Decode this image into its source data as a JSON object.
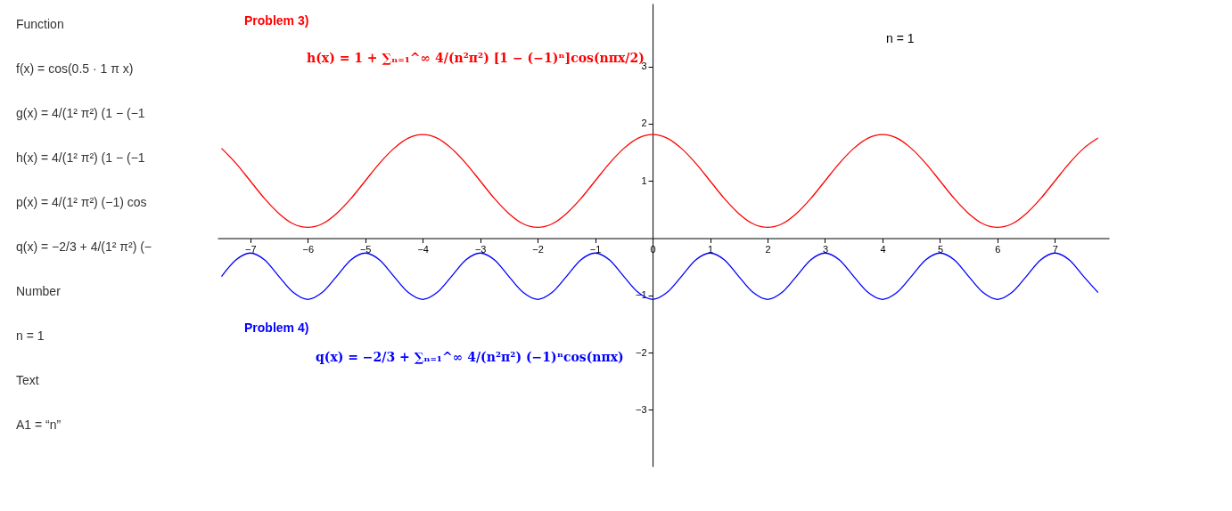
{
  "chart_data": [
    {
      "type": "other",
      "annotations": [
        "Function",
        "f(x) = cos(0.5 · 1 π x)",
        "g(x) = 4/(1² π²) (1 − (−1",
        "h(x) = 4/(1² π²) (1 − (−1",
        "p(x) = 4/(1² π²) (−1) cos",
        "q(x) = −2/3 + 4/(1² π²) (−",
        "Number",
        "n = 1",
        "Text",
        "A1 = “n”"
      ]
    },
    {
      "type": "line",
      "xlim": [
        -7.57,
        7.94
      ],
      "ylim": [
        -3.99,
        4.1
      ],
      "xticks": [
        -7,
        -6,
        -5,
        -4,
        -3,
        -2,
        -1,
        0,
        1,
        2,
        3,
        4,
        5,
        6,
        7
      ],
      "yticks": [
        -3,
        -2,
        -1,
        1,
        2,
        3
      ],
      "grid": false,
      "line_style": "solid",
      "annotations": [
        "Problem 3)",
        "h(x) = 1 + ∑ₙ₌₁^∞ 4/(n²π²) [1 − (−1)ⁿ]cos(nπx/2)",
        "Problem 4)",
        "q(x) = −2/3 + ∑ₙ₌₁^∞ 4/(n²π²) (−1)ⁿcos(nπx)",
        "n = 1"
      ],
      "series": [
        {
          "color": "#ff0000",
          "x": [
            -7.5,
            -7.25,
            -7.0,
            -6.75,
            -6.5,
            -6.25,
            -6.0,
            -5.75,
            -5.5,
            -5.25,
            -5.0,
            -4.75,
            -4.5,
            -4.25,
            -4.0,
            -3.75,
            -3.5,
            -3.25,
            -3.0,
            -2.75,
            -2.5,
            -2.25,
            -2.0,
            -1.75,
            -1.5,
            -1.25,
            -1.0,
            -0.75,
            -0.5,
            -0.25,
            0.0,
            0.25,
            0.5,
            0.75,
            1.0,
            1.25,
            1.5,
            1.75,
            2.0,
            2.25,
            2.5,
            2.75,
            3.0,
            3.25,
            3.5,
            3.75,
            4.0,
            4.25,
            4.5,
            4.75,
            5.0,
            5.25,
            5.5,
            5.75,
            6.0,
            6.25,
            6.5,
            6.75,
            7.0,
            7.25,
            7.5,
            7.75
          ],
          "values": [
            1.57,
            1.31,
            1.0,
            0.69,
            0.43,
            0.25,
            0.19,
            0.25,
            0.43,
            0.69,
            1.0,
            1.31,
            1.57,
            1.75,
            1.81,
            1.75,
            1.57,
            1.31,
            1.0,
            0.69,
            0.43,
            0.25,
            0.19,
            0.25,
            0.43,
            0.69,
            1.0,
            1.31,
            1.57,
            1.75,
            1.81,
            1.75,
            1.57,
            1.31,
            1.0,
            0.69,
            0.43,
            0.25,
            0.19,
            0.25,
            0.43,
            0.69,
            1.0,
            1.31,
            1.57,
            1.75,
            1.81,
            1.75,
            1.57,
            1.31,
            1.0,
            0.69,
            0.43,
            0.25,
            0.19,
            0.25,
            0.43,
            0.69,
            1.0,
            1.31,
            1.57,
            1.75
          ]
        },
        {
          "color": "#0000ff",
          "x": [
            -7.5,
            -7.25,
            -7.0,
            -6.75,
            -6.5,
            -6.25,
            -6.0,
            -5.75,
            -5.5,
            -5.25,
            -5.0,
            -4.75,
            -4.5,
            -4.25,
            -4.0,
            -3.75,
            -3.5,
            -3.25,
            -3.0,
            -2.75,
            -2.5,
            -2.25,
            -2.0,
            -1.75,
            -1.5,
            -1.25,
            -1.0,
            -0.75,
            -0.5,
            -0.25,
            0.0,
            0.25,
            0.5,
            0.75,
            1.0,
            1.25,
            1.5,
            1.75,
            2.0,
            2.25,
            2.5,
            2.75,
            3.0,
            3.25,
            3.5,
            3.75,
            4.0,
            4.25,
            4.5,
            4.75,
            5.0,
            5.25,
            5.5,
            5.75,
            6.0,
            6.25,
            6.5,
            6.75,
            7.0,
            7.25,
            7.5,
            7.75
          ],
          "values": [
            -0.67,
            -0.38,
            -0.26,
            -0.38,
            -0.67,
            -0.95,
            -1.07,
            -0.95,
            -0.67,
            -0.38,
            -0.26,
            -0.38,
            -0.67,
            -0.95,
            -1.07,
            -0.95,
            -0.67,
            -0.38,
            -0.26,
            -0.38,
            -0.67,
            -0.95,
            -1.07,
            -0.95,
            -0.67,
            -0.38,
            -0.26,
            -0.38,
            -0.67,
            -0.95,
            -1.07,
            -0.95,
            -0.67,
            -0.38,
            -0.26,
            -0.38,
            -0.67,
            -0.95,
            -1.07,
            -0.95,
            -0.67,
            -0.38,
            -0.26,
            -0.38,
            -0.67,
            -0.95,
            -1.07,
            -0.95,
            -0.67,
            -0.38,
            -0.26,
            -0.38,
            -0.67,
            -0.95,
            -1.07,
            -0.95,
            -0.67,
            -0.38,
            -0.26,
            -0.38,
            -0.67,
            -0.95
          ]
        }
      ]
    }
  ]
}
